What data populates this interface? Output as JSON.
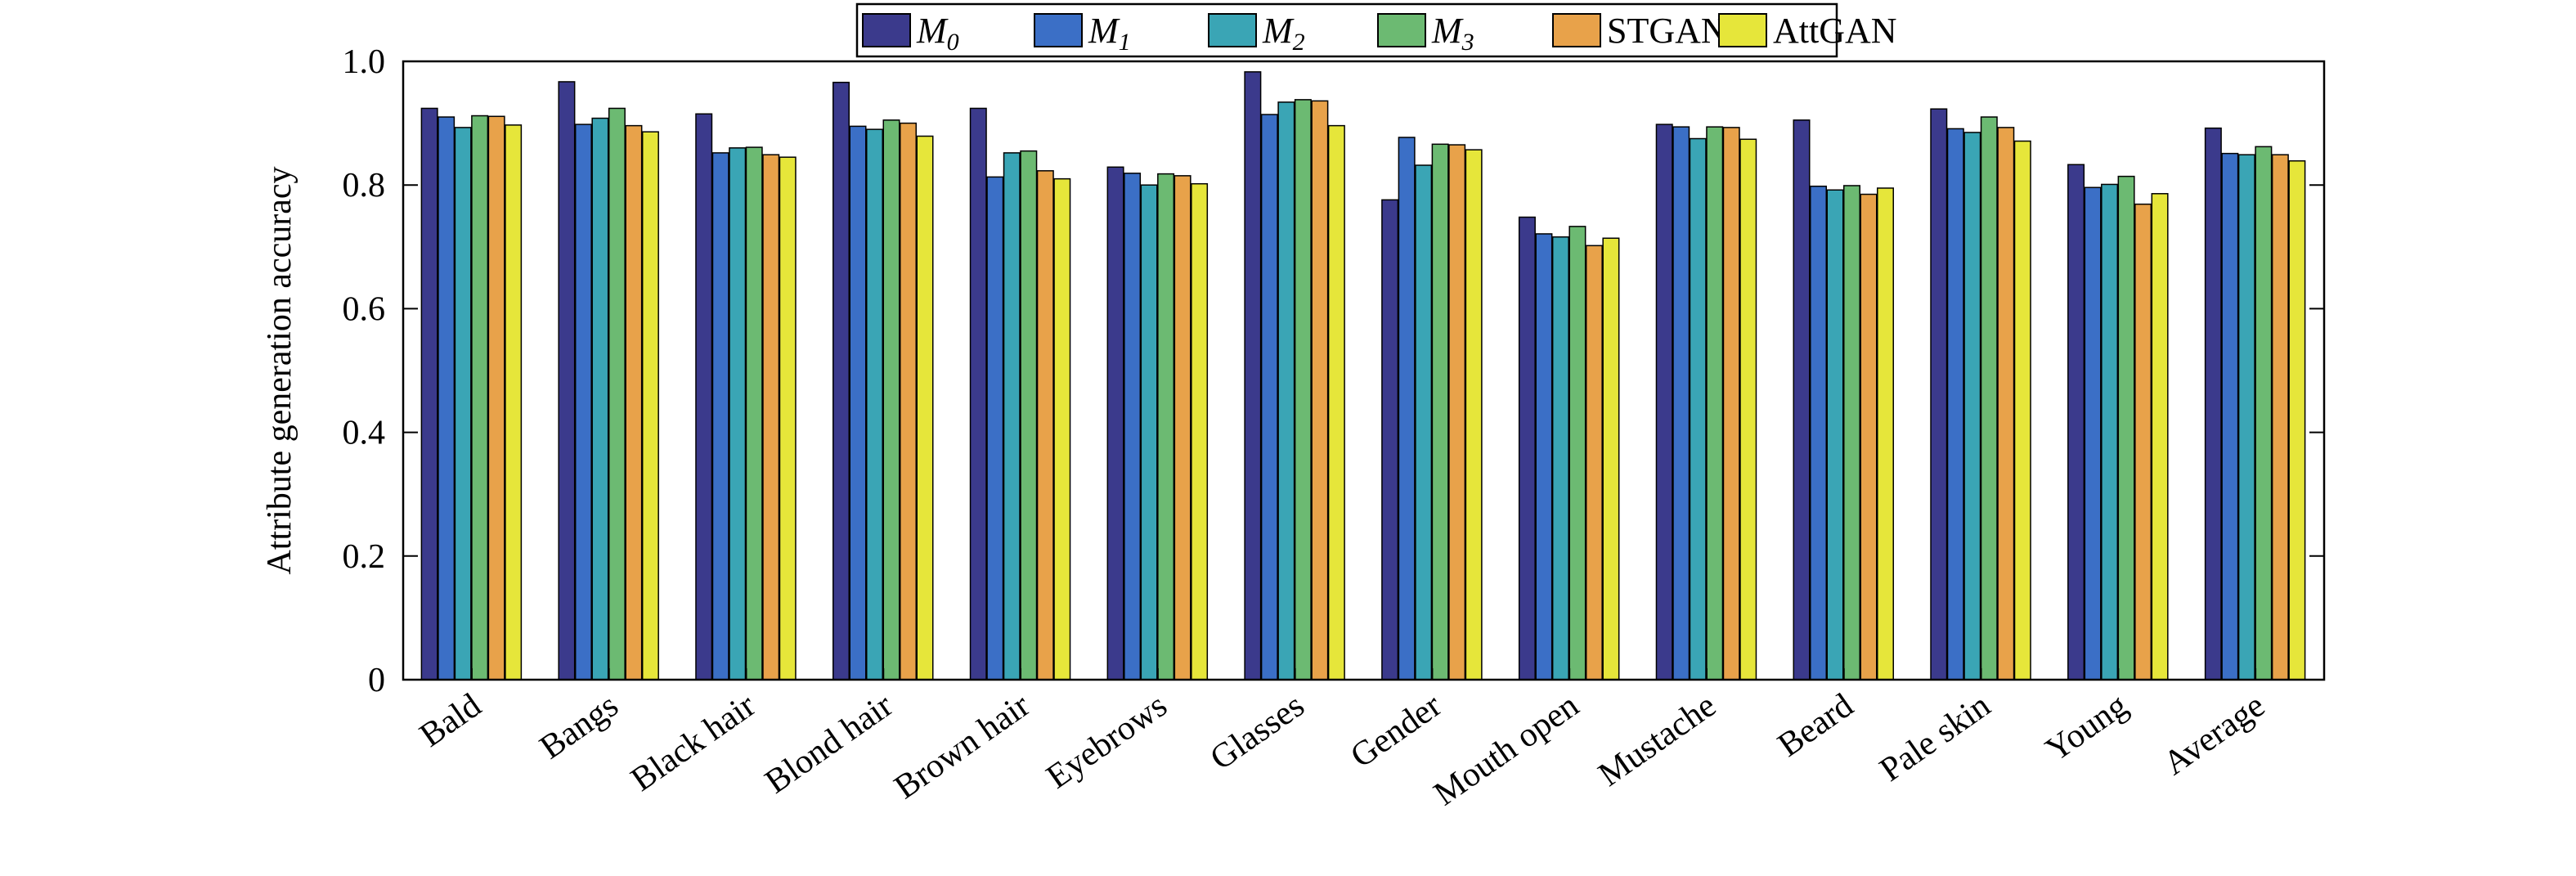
{
  "chart_data": {
    "type": "bar",
    "ylabel": "Attribute generation accuracy",
    "xlabel": "",
    "title": "",
    "ylim": [
      0,
      1.0
    ],
    "yticks": [
      0,
      0.2,
      0.4,
      0.6,
      0.8,
      1.0
    ],
    "ytick_labels": [
      "0",
      "0.2",
      "0.4",
      "0.6",
      "0.8",
      "1.0"
    ],
    "grid": false,
    "legend_position": "top-center",
    "categories": [
      "Bald",
      "Bangs",
      "Black hair",
      "Blond hair",
      "Brown hair",
      "Eyebrows",
      "Glasses",
      "Gender",
      "Mouth open",
      "Mustache",
      "Beard",
      "Pale skin",
      "Young",
      "Average"
    ],
    "series": [
      {
        "name": "M0",
        "legend_main": "M",
        "legend_sub": "0",
        "italic": true,
        "color": "#3b3a8c",
        "values": [
          0.924,
          0.967,
          0.915,
          0.966,
          0.924,
          0.829,
          0.983,
          0.776,
          0.748,
          0.898,
          0.905,
          0.923,
          0.833,
          0.892
        ]
      },
      {
        "name": "M1",
        "legend_main": "M",
        "legend_sub": "1",
        "italic": true,
        "color": "#3b6fc6",
        "values": [
          0.91,
          0.898,
          0.852,
          0.895,
          0.813,
          0.819,
          0.914,
          0.877,
          0.721,
          0.894,
          0.798,
          0.891,
          0.796,
          0.851
        ]
      },
      {
        "name": "M2",
        "legend_main": "M",
        "legend_sub": "2",
        "italic": true,
        "color": "#3aa5b5",
        "values": [
          0.893,
          0.908,
          0.86,
          0.89,
          0.852,
          0.8,
          0.934,
          0.832,
          0.716,
          0.875,
          0.792,
          0.885,
          0.801,
          0.849
        ]
      },
      {
        "name": "M3",
        "legend_main": "M",
        "legend_sub": "3",
        "italic": true,
        "color": "#6cba72",
        "values": [
          0.912,
          0.924,
          0.861,
          0.905,
          0.855,
          0.818,
          0.938,
          0.866,
          0.733,
          0.894,
          0.799,
          0.91,
          0.814,
          0.862
        ]
      },
      {
        "name": "STGAN",
        "legend_main": "STGAN",
        "legend_sub": "",
        "italic": false,
        "color": "#e8a24a",
        "values": [
          0.911,
          0.896,
          0.849,
          0.9,
          0.823,
          0.815,
          0.936,
          0.865,
          0.702,
          0.893,
          0.785,
          0.893,
          0.769,
          0.849
        ]
      },
      {
        "name": "AttGAN",
        "legend_main": "AttGAN",
        "legend_sub": "",
        "italic": false,
        "color": "#e6e63a",
        "values": [
          0.897,
          0.886,
          0.845,
          0.879,
          0.81,
          0.802,
          0.896,
          0.857,
          0.714,
          0.874,
          0.795,
          0.871,
          0.786,
          0.839
        ]
      }
    ]
  }
}
